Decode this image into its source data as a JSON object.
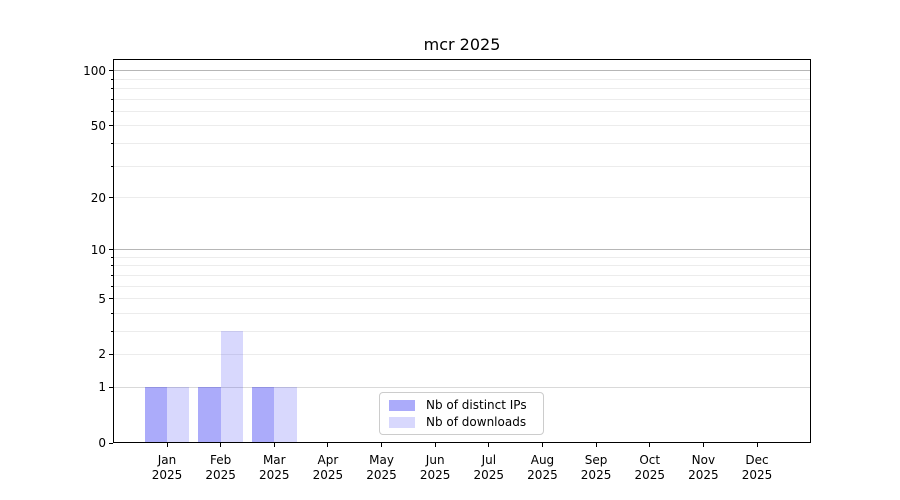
{
  "title": "mcr 2025",
  "chart_data": {
    "type": "bar",
    "title": "mcr 2025",
    "categories": [
      "Jan\n2025",
      "Feb\n2025",
      "Mar\n2025",
      "Apr\n2025",
      "May\n2025",
      "Jun\n2025",
      "Jul\n2025",
      "Aug\n2025",
      "Sep\n2025",
      "Oct\n2025",
      "Nov\n2025",
      "Dec\n2025"
    ],
    "series": [
      {
        "name": "Nb of distinct IPs",
        "color": "rgba(13,13,242,0.35)",
        "values": [
          1,
          1,
          1,
          0,
          0,
          0,
          0,
          0,
          0,
          0,
          0,
          0
        ]
      },
      {
        "name": "Nb of downloads",
        "color": "rgba(13,13,242,0.16)",
        "values": [
          1,
          3,
          1,
          0,
          0,
          0,
          0,
          0,
          0,
          0,
          0,
          0
        ]
      }
    ],
    "xlabel": "",
    "ylabel": "",
    "yscale": "log1p",
    "ylim": [
      0,
      116
    ],
    "yticks": [
      {
        "value": 0,
        "label": "0"
      },
      {
        "value": 1,
        "label": "1"
      },
      {
        "value": 2,
        "label": "2"
      },
      {
        "value": 5,
        "label": "5"
      },
      {
        "value": 10,
        "label": "10"
      },
      {
        "value": 20,
        "label": "20"
      },
      {
        "value": 50,
        "label": "50"
      },
      {
        "value": 100,
        "label": "100"
      }
    ],
    "minor_grid_values": [
      3,
      4,
      6,
      7,
      8,
      9,
      30,
      40,
      60,
      70,
      80,
      90
    ],
    "grid": {
      "on": true,
      "decade_values": [
        10,
        100
      ],
      "decade_color": "#b6b6b6",
      "unit_value": 1,
      "unit_color": "#d9d9d9",
      "minor_color": "#ececec"
    },
    "legend": {
      "position": "lower-center"
    }
  },
  "colors": {
    "background": "#ffffff",
    "axis": "#000000",
    "text": "#000000",
    "legend_border": "#cccccc"
  }
}
